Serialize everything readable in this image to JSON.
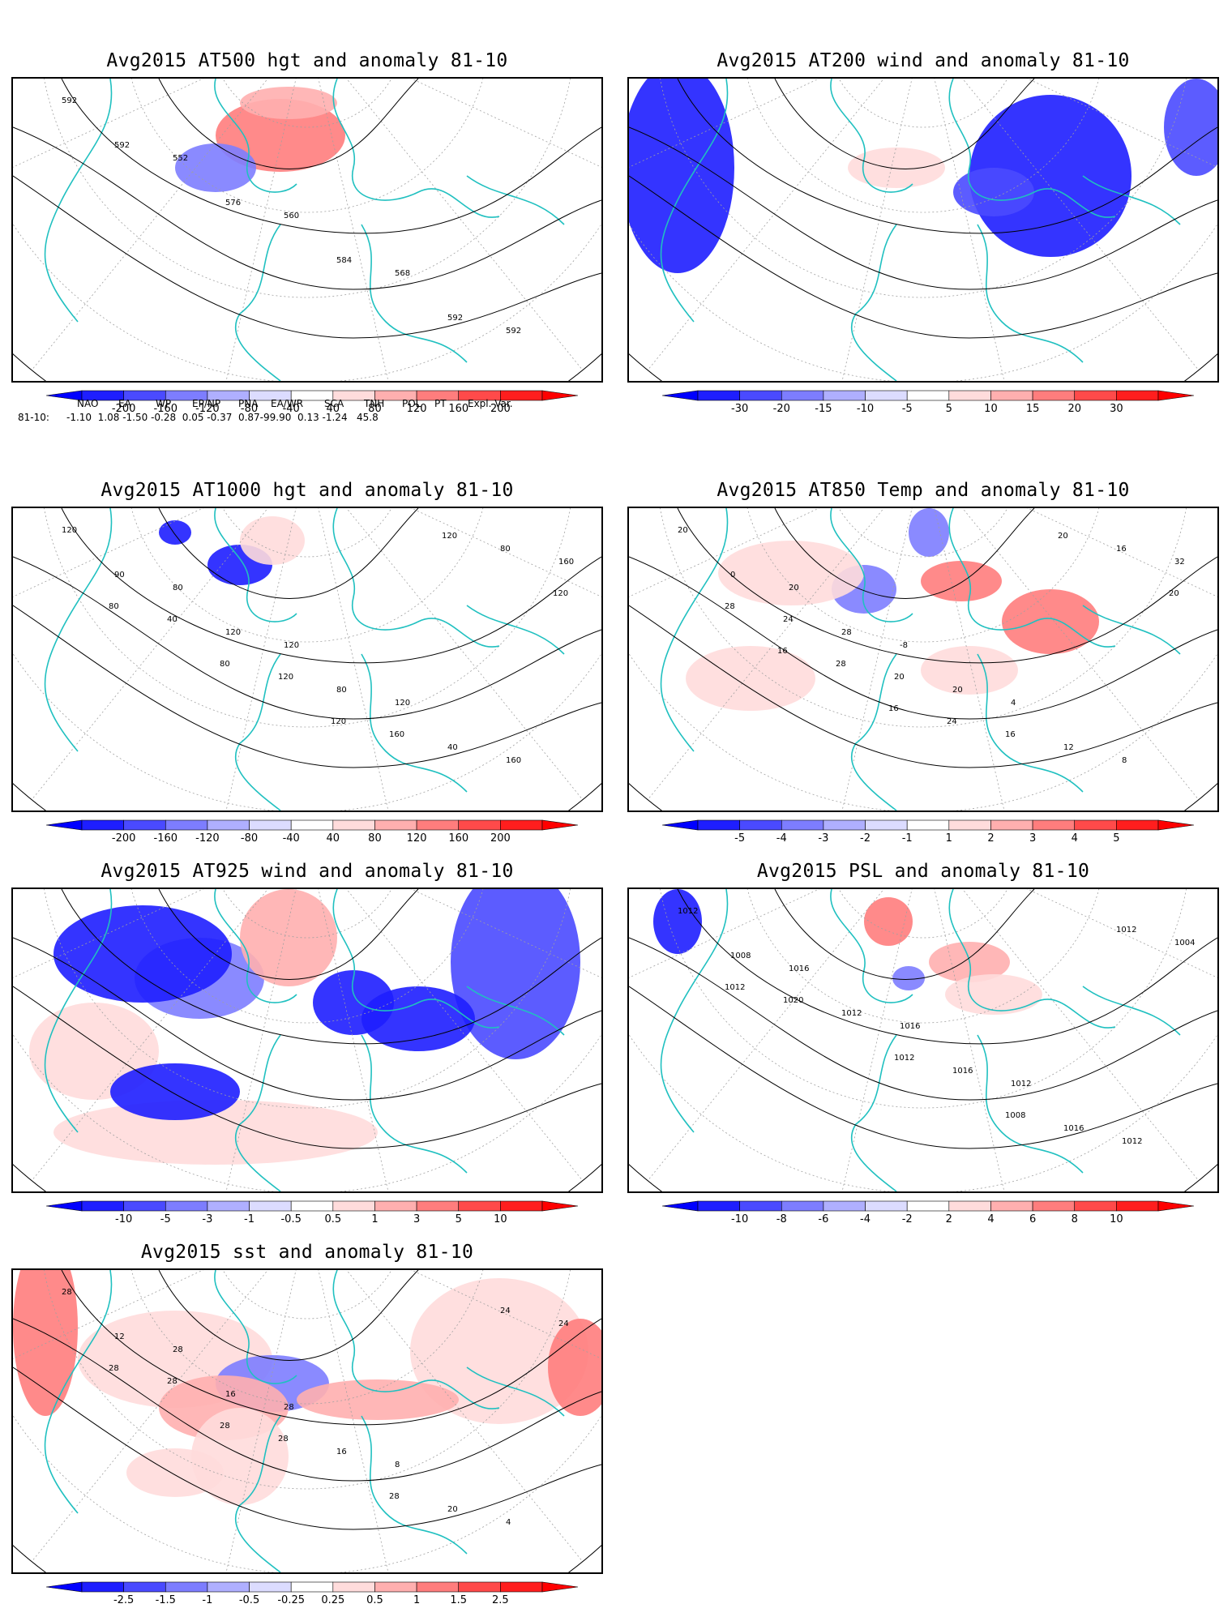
{
  "panels": [
    {
      "title": "Avg2015 AT500 hgt and anomaly 81-10",
      "contours": [
        "592",
        "552",
        "560",
        "568",
        "592",
        "592",
        "576",
        "584",
        "592"
      ],
      "colorbar": [
        "-200",
        "-160",
        "-120",
        "-80",
        "-40",
        "40",
        "80",
        "120",
        "160",
        "200"
      ]
    },
    {
      "title": "Avg2015 AT200 wind and anomaly 81-10",
      "contours": [],
      "colorbar": [
        "-30",
        "-20",
        "-15",
        "-10",
        "-5",
        "5",
        "10",
        "15",
        "20",
        "30"
      ]
    },
    {
      "title": "Avg2015 AT1000 hgt and anomaly 81-10",
      "contours": [
        "120",
        "80",
        "120",
        "120",
        "160",
        "90",
        "120",
        "80",
        "40",
        "160",
        "40",
        "120",
        "160",
        "80",
        "80",
        "80",
        "120",
        "120",
        "120"
      ],
      "colorbar": [
        "-200",
        "-160",
        "-120",
        "-80",
        "-40",
        "40",
        "80",
        "120",
        "160",
        "200"
      ]
    },
    {
      "title": "Avg2015 AT850 Temp and anomaly 81-10",
      "contours": [
        "20",
        "20",
        "-8",
        "4",
        "8",
        "0",
        "28",
        "20",
        "12",
        "32",
        "24",
        "20",
        "16",
        "16",
        "28",
        "28",
        "24",
        "20",
        "20",
        "16",
        "16"
      ],
      "colorbar": [
        "-5",
        "-4",
        "-3",
        "-2",
        "-1",
        "1",
        "2",
        "3",
        "4",
        "5"
      ]
    },
    {
      "title": "Avg2015 AT925 wind and anomaly 81-10",
      "contours": [],
      "colorbar": [
        "-10",
        "-5",
        "-3",
        "-1",
        "-0.5",
        "0.5",
        "1",
        "3",
        "5",
        "10"
      ]
    },
    {
      "title": "Avg2015 PSL and anomaly 81-10",
      "contours": [
        "1012",
        "1016",
        "1016",
        "1012",
        "1012",
        "1008",
        "1012",
        "1016",
        "1016",
        "1004",
        "1020",
        "1012",
        "1008",
        "1012",
        "1012"
      ],
      "colorbar": [
        "-10",
        "-8",
        "-6",
        "-4",
        "-2",
        "2",
        "4",
        "6",
        "8",
        "10"
      ]
    },
    {
      "title": "Avg2015 sst and anomaly 81-10",
      "contours": [
        "28",
        "28",
        "28",
        "8",
        "4",
        "12",
        "16",
        "16",
        "20",
        "24",
        "28",
        "28",
        "28",
        "24",
        "28",
        "28"
      ],
      "colorbar": [
        "-2.5",
        "-1.5",
        "-1",
        "-0.5",
        "-0.25",
        "0.25",
        "0.5",
        "1",
        "1.5",
        "2.5"
      ]
    }
  ],
  "teleconnections": {
    "headers": [
      "NAO",
      "EA",
      "WP",
      "EP/NP",
      "PNA",
      "EA/WR",
      "SCA",
      "TNH",
      "POL",
      "PT",
      "Expl. Var."
    ],
    "row_label": "81-10:",
    "values": "-1.10  1.08 -1.50 -0.28  0.05 -0.37  0.87-99.90  0.13 -1.24   45.8"
  },
  "colors": {
    "contour": "#000000",
    "coastline": "#20c0c0",
    "grid": "#a0a0a0",
    "neg": [
      "#1e1eff",
      "#4a4aff",
      "#7d7dff",
      "#afafff",
      "#dcdcff"
    ],
    "pos": [
      "#ffdcdc",
      "#ffafaf",
      "#ff7d7d",
      "#ff4a4a",
      "#ff1e1e"
    ]
  }
}
